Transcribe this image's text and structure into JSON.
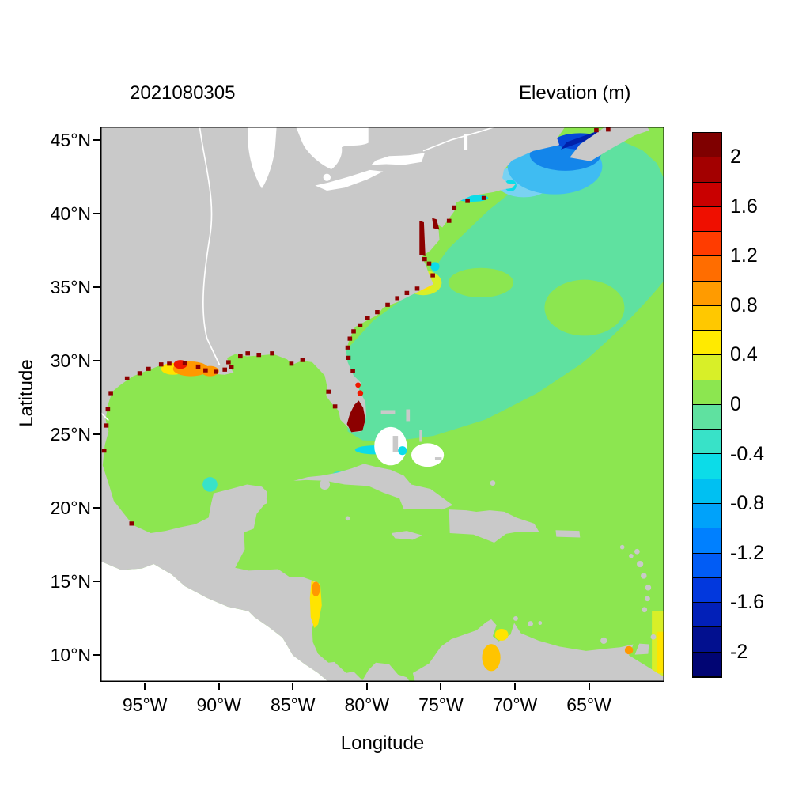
{
  "figure": {
    "date_label": "2021080305",
    "colorbar_title": "Elevation (m)",
    "xlabel": "Longitude",
    "ylabel": "Latitude"
  },
  "axes": {
    "x_ticks": [
      {
        "label": "95°W",
        "lon": -95
      },
      {
        "label": "90°W",
        "lon": -90
      },
      {
        "label": "85°W",
        "lon": -85
      },
      {
        "label": "80°W",
        "lon": -80
      },
      {
        "label": "75°W",
        "lon": -75
      },
      {
        "label": "70°W",
        "lon": -70
      },
      {
        "label": "65°W",
        "lon": -65
      }
    ],
    "y_ticks": [
      {
        "label": "45°N",
        "lat": 45
      },
      {
        "label": "40°N",
        "lat": 40
      },
      {
        "label": "35°N",
        "lat": 35
      },
      {
        "label": "30°N",
        "lat": 30
      },
      {
        "label": "25°N",
        "lat": 25
      },
      {
        "label": "20°N",
        "lat": 20
      },
      {
        "label": "15°N",
        "lat": 15
      },
      {
        "label": "10°N",
        "lat": 10
      }
    ],
    "lon_range_deg": [
      -98,
      -59.9
    ],
    "lat_range_deg": [
      8.2,
      45.9
    ]
  },
  "colorbar": {
    "tick_labels": [
      "2",
      "1.6",
      "1.2",
      "0.8",
      "0.4",
      "0",
      "-0.4",
      "-0.8",
      "-1.2",
      "-1.6",
      "-2"
    ],
    "value_range": [
      -2.2,
      2.2
    ],
    "block_step": 0.2,
    "blocks_top_to_bottom": [
      "#7f0000",
      "#a30000",
      "#c90000",
      "#ef0f00",
      "#ff3c00",
      "#ff6d00",
      "#ff9b00",
      "#ffc800",
      "#ffea00",
      "#d8ef28",
      "#8ce650",
      "#5fe1a0",
      "#38e2c8",
      "#0cdce8",
      "#00c0f2",
      "#00a2fa",
      "#0080ff",
      "#015cf5",
      "#0238dd",
      "#0220b8",
      "#02108f",
      "#010573"
    ]
  },
  "palette": {
    "land": "#c9c9c9",
    "no_data": "#ffffff",
    "green": "#8ce650",
    "springgreen": "#5fe1a0",
    "turquoise": "#38e2c8",
    "cyan": "#0cdce8",
    "lightblue": "#7ad2f2",
    "skyblue": "#3fbcf2",
    "blue": "#1385ea",
    "deepblue": "#0548d8",
    "navy": "#0020aa",
    "yellowgreen": "#d8ef28",
    "yellow": "#ffe400",
    "yelloworange": "#ffc400",
    "orange": "#ff9800",
    "red": "#f01800",
    "darkred": "#8c0000"
  },
  "chart_data": {
    "type": "heatmap",
    "title": "Elevation (m) — 2021080305",
    "xlabel": "Longitude",
    "ylabel": "Latitude",
    "x_tick_labels": [
      "95°W",
      "90°W",
      "85°W",
      "80°W",
      "75°W",
      "70°W",
      "65°W"
    ],
    "y_tick_labels": [
      "10°N",
      "15°N",
      "20°N",
      "25°N",
      "30°N",
      "35°N",
      "40°N",
      "45°N"
    ],
    "xlim": [
      -98,
      -59.9
    ],
    "ylim": [
      8.2,
      45.9
    ],
    "colorbar_ticks": [
      2,
      1.6,
      1.2,
      0.8,
      0.4,
      0,
      -0.4,
      -0.8,
      -1.2,
      -1.6,
      -2
    ],
    "colorbar_range": [
      -2.2,
      2.2
    ],
    "land_color": "gray",
    "no_data_color": "white",
    "regions": [
      {
        "area": "Gulf of Mexico (open water)",
        "elevation_m": "0 to 0.2"
      },
      {
        "area": "Caribbean Sea (open water)",
        "elevation_m": "0 to 0.2"
      },
      {
        "area": "Northwest Atlantic / Gulf Stream region",
        "elevation_m": "-0.2 to 0"
      },
      {
        "area": "Open Atlantic patch near 65°W 32°N",
        "elevation_m": "0 to 0.2"
      },
      {
        "area": "Gulf of Maine / Cape Cod",
        "elevation_m": "-0.4 to -1.2"
      },
      {
        "area": "Bay of Fundy",
        "elevation_m": "-1.6 to -2.2"
      },
      {
        "area": "Louisiana shelf and delta",
        "elevation_m": "0.4 to 1.2, >2 at coast"
      },
      {
        "area": "South Florida / Everglades coast",
        "elevation_m": ">2"
      },
      {
        "area": "US East Coast estuaries (Chesapeake, Georgia coast)",
        "elevation_m": ">2"
      },
      {
        "area": "Pamlico Sound (Cape Hatteras)",
        "elevation_m": "0.2 to 0.6"
      },
      {
        "area": "Nicaragua (Mosquito) coast",
        "elevation_m": "0.4 to 0.8"
      },
      {
        "area": "Lake Maracaibo",
        "elevation_m": "0.6 to 1.0"
      },
      {
        "area": "Southeast map edge near Trinidad",
        "elevation_m": "0.2 to 0.6"
      }
    ]
  }
}
